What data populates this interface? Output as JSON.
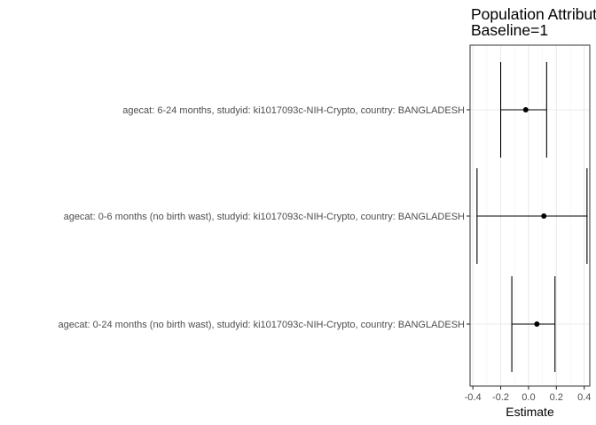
{
  "chart_data": {
    "type": "forest",
    "title_lines": [
      "Population Attributable Difference",
      "Baseline=1"
    ],
    "xlabel": "Estimate",
    "xlim": [
      -0.42,
      0.44
    ],
    "xticks": [
      -0.4,
      -0.2,
      0.0,
      0.2,
      0.4
    ],
    "xtick_labels": [
      "-0.4",
      "-0.2",
      "0.0",
      "0.2",
      "0.4"
    ],
    "grid": true,
    "rows": [
      {
        "label": "agecat: 6-24 months, studyid: ki1017093c-NIH-Crypto, country: BANGLADESH",
        "estimate": -0.02,
        "lower": -0.2,
        "upper": 0.13
      },
      {
        "label": "agecat: 0-6 months (no birth wast), studyid: ki1017093c-NIH-Crypto, country: BANGLADESH",
        "estimate": 0.11,
        "lower": -0.37,
        "upper": 0.42
      },
      {
        "label": "agecat: 0-24 months (no birth wast), studyid: ki1017093c-NIH-Crypto, country: BANGLADESH",
        "estimate": 0.06,
        "lower": -0.12,
        "upper": 0.19
      }
    ]
  }
}
